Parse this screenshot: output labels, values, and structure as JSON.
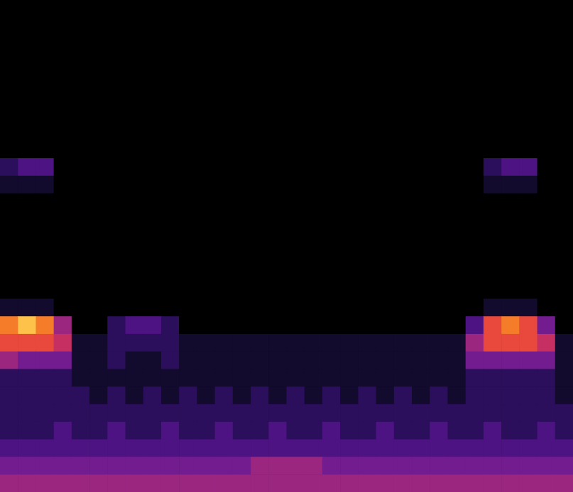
{
  "chart_data": {
    "type": "heatmap",
    "tick_labels": false,
    "color_range": [
      0,
      9
    ],
    "cells": [
      [
        0,
        0,
        0,
        0,
        0,
        0,
        0,
        0,
        0,
        0,
        0,
        0,
        0,
        0,
        0,
        0,
        0,
        0,
        0,
        0,
        0,
        0,
        0,
        0,
        0,
        0,
        0,
        0,
        0,
        0,
        0,
        0
      ],
      [
        0,
        0,
        0,
        0,
        0,
        0,
        0,
        0,
        0,
        0,
        0,
        0,
        0,
        0,
        0,
        0,
        0,
        0,
        0,
        0,
        0,
        0,
        0,
        0,
        0,
        0,
        0,
        0,
        0,
        0,
        0,
        0
      ],
      [
        0,
        0,
        0,
        0,
        0,
        0,
        0,
        0,
        0,
        0,
        0,
        0,
        0,
        0,
        0,
        0,
        0,
        0,
        0,
        0,
        0,
        0,
        0,
        0,
        0,
        0,
        0,
        0,
        0,
        0,
        0,
        0
      ],
      [
        0,
        0,
        0,
        0,
        0,
        0,
        0,
        0,
        0,
        0,
        0,
        0,
        0,
        0,
        0,
        0,
        0,
        0,
        0,
        0,
        0,
        0,
        0,
        0,
        0,
        0,
        0,
        0,
        0,
        0,
        0,
        0
      ],
      [
        0,
        0,
        0,
        0,
        0,
        0,
        0,
        0,
        0,
        0,
        0,
        0,
        0,
        0,
        0,
        0,
        0,
        0,
        0,
        0,
        0,
        0,
        0,
        0,
        0,
        0,
        0,
        0,
        0,
        0,
        0,
        0
      ],
      [
        0,
        0,
        0,
        0,
        0,
        0,
        0,
        0,
        0,
        0,
        0,
        0,
        0,
        0,
        0,
        0,
        0,
        0,
        0,
        0,
        0,
        0,
        0,
        0,
        0,
        0,
        0,
        0,
        0,
        0,
        0,
        0
      ],
      [
        0,
        0,
        0,
        0,
        0,
        0,
        0,
        0,
        0,
        0,
        0,
        0,
        0,
        0,
        0,
        0,
        0,
        0,
        0,
        0,
        0,
        0,
        0,
        0,
        0,
        0,
        0,
        0,
        0,
        0,
        0,
        0
      ],
      [
        0,
        0,
        0,
        0,
        0,
        0,
        0,
        0,
        0,
        0,
        0,
        0,
        0,
        0,
        0,
        0,
        0,
        0,
        0,
        0,
        0,
        0,
        0,
        0,
        0,
        0,
        0,
        0,
        0,
        0,
        0,
        0
      ],
      [
        0,
        0,
        0,
        0,
        0,
        0,
        0,
        0,
        0,
        0,
        0,
        0,
        0,
        0,
        0,
        0,
        0,
        0,
        0,
        0,
        0,
        0,
        0,
        0,
        0,
        0,
        0,
        0,
        0,
        0,
        0,
        0
      ],
      [
        2,
        3,
        3,
        0,
        0,
        0,
        0,
        0,
        0,
        0,
        0,
        0,
        0,
        0,
        0,
        0,
        0,
        0,
        0,
        0,
        0,
        0,
        0,
        0,
        0,
        0,
        0,
        2,
        3,
        3,
        0,
        0
      ],
      [
        1,
        1,
        1,
        0,
        0,
        0,
        0,
        0,
        0,
        0,
        0,
        0,
        0,
        0,
        0,
        0,
        0,
        0,
        0,
        0,
        0,
        0,
        0,
        0,
        0,
        0,
        0,
        1,
        1,
        1,
        0,
        0
      ],
      [
        0,
        0,
        0,
        0,
        0,
        0,
        0,
        0,
        0,
        0,
        0,
        0,
        0,
        0,
        0,
        0,
        0,
        0,
        0,
        0,
        0,
        0,
        0,
        0,
        0,
        0,
        0,
        0,
        0,
        0,
        0,
        0
      ],
      [
        0,
        0,
        0,
        0,
        0,
        0,
        0,
        0,
        0,
        0,
        0,
        0,
        0,
        0,
        0,
        0,
        0,
        0,
        0,
        0,
        0,
        0,
        0,
        0,
        0,
        0,
        0,
        0,
        0,
        0,
        0,
        0
      ],
      [
        0,
        0,
        0,
        0,
        0,
        0,
        0,
        0,
        0,
        0,
        0,
        0,
        0,
        0,
        0,
        0,
        0,
        0,
        0,
        0,
        0,
        0,
        0,
        0,
        0,
        0,
        0,
        0,
        0,
        0,
        0,
        0
      ],
      [
        0,
        0,
        0,
        0,
        0,
        0,
        0,
        0,
        0,
        0,
        0,
        0,
        0,
        0,
        0,
        0,
        0,
        0,
        0,
        0,
        0,
        0,
        0,
        0,
        0,
        0,
        0,
        0,
        0,
        0,
        0,
        0
      ],
      [
        0,
        0,
        0,
        0,
        0,
        0,
        0,
        0,
        0,
        0,
        0,
        0,
        0,
        0,
        0,
        0,
        0,
        0,
        0,
        0,
        0,
        0,
        0,
        0,
        0,
        0,
        0,
        0,
        0,
        0,
        0,
        0
      ],
      [
        0,
        0,
        0,
        0,
        0,
        0,
        0,
        0,
        0,
        0,
        0,
        0,
        0,
        0,
        0,
        0,
        0,
        0,
        0,
        0,
        0,
        0,
        0,
        0,
        0,
        0,
        0,
        0,
        0,
        0,
        0,
        0
      ],
      [
        1,
        1,
        1,
        0,
        0,
        0,
        0,
        0,
        0,
        0,
        0,
        0,
        0,
        0,
        0,
        0,
        0,
        0,
        0,
        0,
        0,
        0,
        0,
        0,
        0,
        0,
        0,
        1,
        1,
        1,
        0,
        0
      ],
      [
        8,
        9,
        8,
        5,
        0,
        0,
        2,
        3,
        3,
        2,
        0,
        0,
        0,
        0,
        0,
        0,
        0,
        0,
        0,
        0,
        0,
        0,
        0,
        0,
        0,
        0,
        3,
        7,
        8,
        7,
        4,
        0
      ],
      [
        7,
        7,
        7,
        6,
        1,
        1,
        2,
        2,
        2,
        2,
        1,
        1,
        1,
        1,
        1,
        1,
        1,
        1,
        1,
        1,
        1,
        1,
        1,
        1,
        1,
        1,
        5,
        7,
        7,
        7,
        6,
        1
      ],
      [
        5,
        4,
        4,
        4,
        1,
        1,
        2,
        1,
        1,
        2,
        1,
        1,
        1,
        1,
        1,
        1,
        1,
        1,
        1,
        1,
        1,
        1,
        1,
        1,
        1,
        1,
        4,
        4,
        4,
        4,
        4,
        1
      ],
      [
        2,
        2,
        2,
        2,
        1,
        1,
        1,
        1,
        1,
        1,
        1,
        1,
        1,
        1,
        1,
        1,
        1,
        1,
        1,
        1,
        1,
        1,
        1,
        1,
        1,
        1,
        2,
        2,
        2,
        2,
        2,
        1
      ],
      [
        2,
        2,
        2,
        2,
        2,
        1,
        2,
        1,
        2,
        1,
        2,
        1,
        2,
        1,
        2,
        1,
        2,
        1,
        2,
        1,
        2,
        1,
        2,
        1,
        2,
        1,
        2,
        2,
        2,
        2,
        2,
        1
      ],
      [
        2,
        2,
        2,
        2,
        2,
        2,
        2,
        2,
        2,
        2,
        2,
        2,
        2,
        2,
        2,
        2,
        2,
        2,
        2,
        2,
        2,
        2,
        2,
        2,
        2,
        2,
        2,
        2,
        2,
        2,
        2,
        2
      ],
      [
        2,
        2,
        2,
        3,
        2,
        2,
        3,
        2,
        2,
        3,
        2,
        2,
        3,
        2,
        2,
        3,
        2,
        2,
        3,
        2,
        2,
        3,
        2,
        2,
        3,
        2,
        2,
        3,
        2,
        2,
        3,
        2
      ],
      [
        3,
        3,
        3,
        3,
        3,
        3,
        3,
        3,
        3,
        3,
        3,
        3,
        3,
        3,
        3,
        3,
        3,
        3,
        3,
        3,
        3,
        3,
        3,
        3,
        3,
        3,
        3,
        3,
        3,
        3,
        3,
        3
      ],
      [
        4,
        4,
        4,
        4,
        4,
        4,
        4,
        4,
        4,
        4,
        4,
        4,
        4,
        4,
        5,
        5,
        5,
        5,
        4,
        4,
        4,
        4,
        4,
        4,
        4,
        4,
        4,
        4,
        4,
        4,
        4,
        4
      ],
      [
        5,
        5,
        5,
        5,
        5,
        5,
        5,
        5,
        5,
        5,
        5,
        5,
        5,
        5,
        5,
        5,
        5,
        5,
        5,
        5,
        5,
        5,
        5,
        5,
        5,
        5,
        5,
        5,
        5,
        5,
        5,
        5
      ]
    ]
  }
}
